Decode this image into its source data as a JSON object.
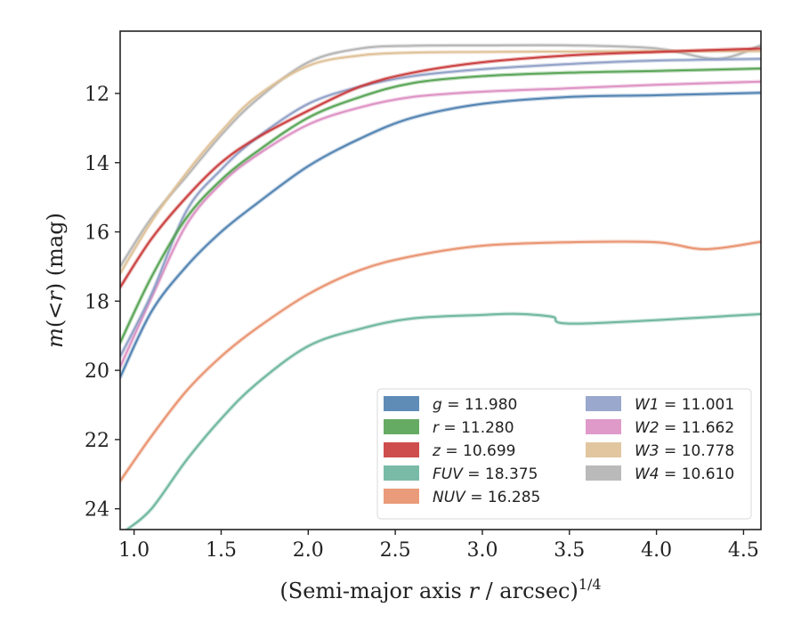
{
  "chart_data": {
    "type": "line",
    "title": "",
    "xlabel": "(Semi-major axis r / arcsec)^1/4",
    "xlabel_main": "(Semi-major axis ",
    "xlabel_var": "r",
    "xlabel_unit": " / arcsec)",
    "xlabel_exp": "1/4",
    "ylabel": "m(< r) (mag)",
    "ylabel_var1": "m",
    "ylabel_mid1": "(<",
    "ylabel_var2": "r",
    "ylabel_tail": ") (mag)",
    "xlim": [
      0.92,
      4.6
    ],
    "ylim": [
      24.6,
      10.2
    ],
    "y_inverted": true,
    "grid": false,
    "legend_position": "lower-right",
    "x_ticks": [
      1.0,
      1.5,
      2.0,
      2.5,
      3.0,
      3.5,
      4.0,
      4.5
    ],
    "x_tick_labels": [
      "1.0",
      "1.5",
      "2.0",
      "2.5",
      "3.0",
      "3.5",
      "4.0",
      "4.5"
    ],
    "y_ticks": [
      12,
      14,
      16,
      18,
      20,
      22,
      24
    ],
    "y_tick_labels": [
      "12",
      "14",
      "16",
      "18",
      "20",
      "22",
      "24"
    ],
    "series": [
      {
        "name": "g",
        "value": "11.980",
        "color": "#4c7faf",
        "x": [
          0.92,
          1.1,
          1.3,
          1.5,
          1.7,
          2.0,
          2.3,
          2.6,
          3.0,
          3.5,
          4.0,
          4.6
        ],
        "y": [
          20.2,
          18.3,
          17.0,
          16.0,
          15.2,
          14.1,
          13.3,
          12.7,
          12.3,
          12.1,
          12.05,
          11.98
        ]
      },
      {
        "name": "r",
        "value": "11.280",
        "color": "#55a252",
        "x": [
          0.92,
          1.1,
          1.3,
          1.5,
          1.7,
          2.0,
          2.3,
          2.6,
          3.0,
          3.5,
          4.0,
          4.6
        ],
        "y": [
          19.2,
          17.3,
          15.6,
          14.5,
          13.7,
          12.7,
          12.1,
          11.7,
          11.5,
          11.4,
          11.35,
          11.28
        ]
      },
      {
        "name": "z",
        "value": "10.699",
        "color": "#c93a3a",
        "x": [
          0.92,
          1.1,
          1.3,
          1.5,
          1.7,
          2.0,
          2.3,
          2.6,
          3.0,
          3.5,
          4.0,
          4.6
        ],
        "y": [
          17.6,
          16.2,
          15.0,
          14.0,
          13.3,
          12.5,
          11.8,
          11.4,
          11.1,
          10.9,
          10.8,
          10.7
        ]
      },
      {
        "name": "FUV",
        "value": "18.375",
        "color": "#6ab49c",
        "x": [
          0.96,
          1.1,
          1.3,
          1.5,
          1.7,
          2.0,
          2.3,
          2.6,
          3.0,
          3.2,
          3.4,
          3.55,
          4.6
        ],
        "y": [
          24.6,
          24.0,
          22.6,
          21.4,
          20.4,
          19.3,
          18.8,
          18.5,
          18.4,
          18.37,
          18.45,
          18.65,
          18.375
        ]
      },
      {
        "name": "NUV",
        "value": "16.285",
        "color": "#e8906c",
        "x": [
          0.92,
          1.1,
          1.3,
          1.5,
          1.7,
          2.0,
          2.3,
          2.6,
          3.0,
          3.5,
          4.0,
          4.28,
          4.6
        ],
        "y": [
          23.2,
          21.9,
          20.6,
          19.6,
          18.8,
          17.8,
          17.1,
          16.7,
          16.4,
          16.3,
          16.3,
          16.5,
          16.285
        ]
      },
      {
        "name": "W1",
        "value": "11.001",
        "color": "#8e9ec6",
        "x": [
          0.92,
          1.1,
          1.3,
          1.5,
          1.7,
          2.0,
          2.3,
          2.6,
          3.0,
          3.5,
          4.0,
          4.6
        ],
        "y": [
          19.6,
          17.8,
          15.4,
          14.2,
          13.3,
          12.3,
          11.8,
          11.5,
          11.3,
          11.15,
          11.05,
          11.0
        ]
      },
      {
        "name": "W2",
        "value": "11.662",
        "color": "#dc8fc3",
        "x": [
          0.92,
          1.1,
          1.3,
          1.5,
          1.7,
          2.0,
          2.3,
          2.6,
          3.0,
          3.5,
          4.0,
          4.6
        ],
        "y": [
          19.9,
          17.9,
          15.8,
          14.6,
          13.8,
          12.9,
          12.4,
          12.1,
          11.95,
          11.85,
          11.75,
          11.66
        ]
      },
      {
        "name": "W3",
        "value": "10.778",
        "color": "#dec096",
        "x": [
          0.92,
          1.1,
          1.3,
          1.5,
          1.7,
          2.0,
          2.3,
          2.6,
          3.0,
          3.5,
          4.0,
          4.6
        ],
        "y": [
          17.2,
          15.7,
          14.3,
          13.1,
          12.1,
          11.2,
          10.9,
          10.82,
          10.8,
          10.79,
          10.78,
          10.78
        ]
      },
      {
        "name": "W4",
        "value": "10.610",
        "color": "#b3b3b3",
        "x": [
          0.92,
          1.1,
          1.3,
          1.5,
          1.7,
          2.0,
          2.3,
          2.6,
          3.0,
          3.5,
          4.0,
          4.35,
          4.6
        ],
        "y": [
          17.0,
          15.6,
          14.4,
          13.2,
          12.2,
          11.1,
          10.7,
          10.62,
          10.61,
          10.61,
          10.7,
          11.0,
          10.61
        ]
      }
    ],
    "legend_columns": [
      [
        "g",
        "r",
        "z",
        "FUV",
        "NUV"
      ],
      [
        "W1",
        "W2",
        "W3",
        "W4"
      ]
    ]
  }
}
